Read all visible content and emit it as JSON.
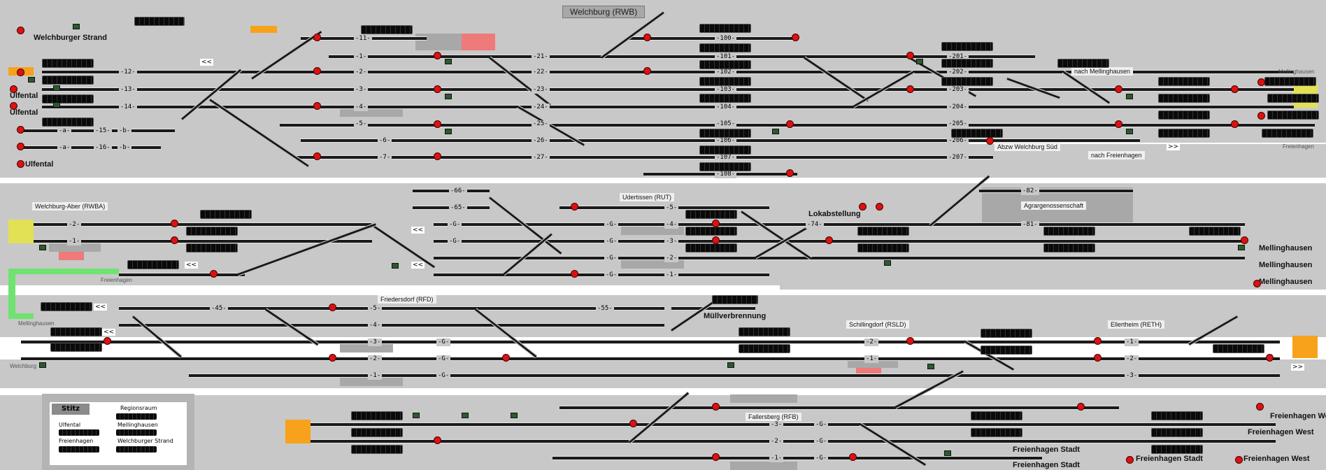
{
  "header": {
    "title": "Welchburg (RWB)"
  },
  "sections": {
    "top": {
      "left_labels": [
        "Welchburger Strand",
        "Ulfental",
        "Ulfental",
        "Ulfental"
      ],
      "right_labels": [
        "Mellinghausen",
        "Freienhagen"
      ],
      "abzw": "Abzw Welchburg Süd",
      "nach1": "nach Mellinghausen",
      "nach2": "nach Freienhagen",
      "arrow_right": ">>",
      "arrow_left": "<<",
      "tracks_left": [
        "-12-",
        "-13-",
        "-14-",
        "-a-",
        "-15-",
        "-b-",
        "-a-",
        "-16-",
        "-b-"
      ],
      "tracks_mid1": [
        "-11-",
        "-1-",
        "-2-",
        "-3-",
        "-4-",
        "-5-",
        "-6-",
        "-7-"
      ],
      "tracks_mid2": [
        "-21-",
        "-22-",
        "-23-",
        "-24-",
        "-25-",
        "-26-",
        "-27-"
      ],
      "tracks_mid3": [
        "-100-",
        "-101-",
        "-102-",
        "-103-",
        "-104-",
        "-105-",
        "-106-",
        "-107-",
        "-108-"
      ],
      "tracks_right": [
        "-201-",
        "-202-",
        "-203-",
        "-204-",
        "-205-",
        "-206-",
        "-207-"
      ]
    },
    "middle": {
      "station1": "Welchburg-Aber (RWBA)",
      "station2": "Udertissen (RUT)",
      "station3": "Agrargenossenschaft",
      "lok": "Lokabstellung",
      "freienhagen": "Freienhagen",
      "mell": [
        "Mellinghausen",
        "Mellinghausen",
        "Mellinghausen"
      ],
      "tracks_a": [
        "-2-",
        "-1-"
      ],
      "tracks_b": [
        "-65-",
        "-66-"
      ],
      "tracks_c": [
        "-5-",
        "-4-",
        "-3-",
        "-2-",
        "-1-"
      ],
      "tracks_d": [
        "-74-",
        "-81-",
        "-82-"
      ],
      "g": "-G-"
    },
    "lower": {
      "station1": "Friedersdorf (RFD)",
      "station2": "Schillingdorf (RSLD)",
      "station3": "Ellertheim (RETH)",
      "muell": "Müllverbrennung",
      "mell": "Mellinghausen",
      "welch": "Welchburg",
      "tracks_a": [
        "-45-",
        "-5-",
        "-4-",
        "-3-",
        "-2-",
        "-1-"
      ],
      "tracks_b": [
        "-55-"
      ],
      "tracks_c": [
        "-2-",
        "-1-"
      ],
      "tracks_d": [
        "-1-",
        "-2-",
        "-3-"
      ],
      "g": "-G-"
    },
    "bottom": {
      "station": "Fallersberg (RFB)",
      "tracks": [
        "-3-",
        "-2-",
        "-1-"
      ],
      "g": "-G-",
      "right_labels": [
        "Freienhagen West",
        "Freienhagen West",
        "Freienhagen Stadt",
        "Freienhagen Stadt",
        "Freienhagen Stadt",
        "Freienhagen West"
      ]
    }
  },
  "legend": {
    "title": "Stitz",
    "col1_header": "Regionsraum",
    "items_left": [
      "Ulfental",
      "Freienhagen"
    ],
    "items_right": [
      "Mellinghausen",
      "Welchburger Strand"
    ]
  },
  "colors": {
    "background": "#c8c8c8",
    "track": "#1a1a1a",
    "signal_red": "#dd1111",
    "occupied": "#ee7a7a",
    "entry_orange": "#f7a21a",
    "entry_yellow": "#e2e055",
    "route_green": "#6fe36f"
  }
}
